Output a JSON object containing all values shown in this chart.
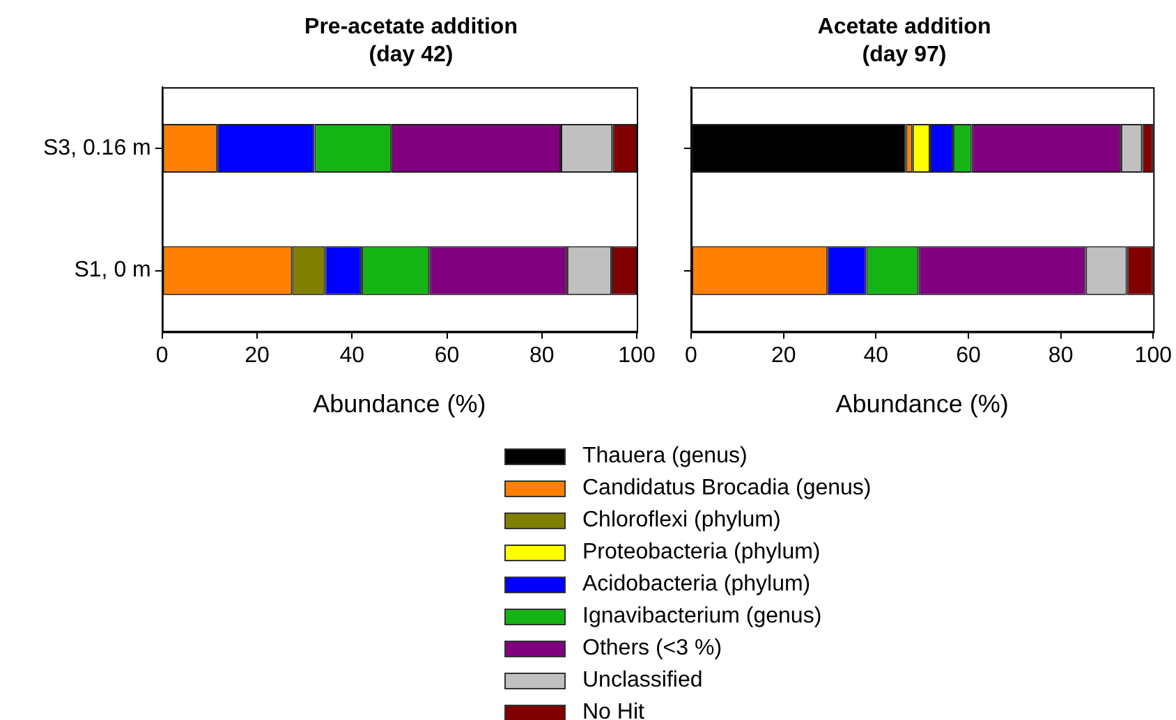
{
  "chart_data": [
    {
      "type": "bar",
      "orientation": "horizontal",
      "stacked": true,
      "title": "Pre-acetate addition (day 42)",
      "xlabel": "Abundance (%)",
      "categories": [
        "S3, 0.16 m",
        "S1, 0 m"
      ],
      "xlim": [
        0,
        100
      ],
      "xticks": [
        0,
        20,
        40,
        60,
        80,
        100
      ],
      "grid": false,
      "legend": "bottom",
      "series": [
        {
          "name": "Thauera (genus)",
          "color": "#000000",
          "values": [
            null,
            null
          ]
        },
        {
          "name": "Candidatus Brocadia (genus)",
          "color": "#ff8000",
          "values": [
            11.6,
            27.4
          ]
        },
        {
          "name": "Chloroflexi (phylum)",
          "color": "#808000",
          "values": [
            null,
            6.9
          ]
        },
        {
          "name": "Proteobacteria (phylum)",
          "color": "#ffff00",
          "values": [
            null,
            null
          ]
        },
        {
          "name": "Acidobacteria (phylum)",
          "color": "#0000ff",
          "values": [
            20.5,
            7.7
          ]
        },
        {
          "name": "Ignavibacterium (genus)",
          "color": "#14b414",
          "values": [
            16.2,
            14.3
          ]
        },
        {
          "name": "Others (<3 %)",
          "color": "#800080",
          "values": [
            35.7,
            29.0
          ]
        },
        {
          "name": "Unclassified",
          "color": "#c0c0c0",
          "values": [
            10.9,
            9.4
          ]
        },
        {
          "name": "No Hit",
          "color": "#800000",
          "values": [
            5.1,
            5.3
          ]
        }
      ]
    },
    {
      "type": "bar",
      "orientation": "horizontal",
      "stacked": true,
      "title": "Acetate addition (day 97)",
      "xlabel": "Abundance (%)",
      "categories": [
        null,
        null
      ],
      "xlim": [
        0,
        100
      ],
      "xticks": [
        0,
        20,
        40,
        60,
        80,
        100
      ],
      "grid": false,
      "series": [
        {
          "color": "#000000",
          "values": [
            46.5,
            null
          ]
        },
        {
          "color": "#ff8000",
          "values": [
            1.4,
            29.5
          ]
        },
        {
          "color": "#ffff00",
          "values": [
            3.8,
            null
          ]
        },
        {
          "color": "#0000ff",
          "values": [
            5.0,
            8.4
          ]
        },
        {
          "color": "#14b414",
          "values": [
            4.0,
            11.3
          ]
        },
        {
          "color": "#800080",
          "values": [
            32.3,
            36.2
          ]
        },
        {
          "color": "#c0c0c0",
          "values": [
            4.6,
            8.9
          ]
        },
        {
          "color": "#800000",
          "values": [
            2.4,
            5.7
          ]
        }
      ]
    }
  ]
}
